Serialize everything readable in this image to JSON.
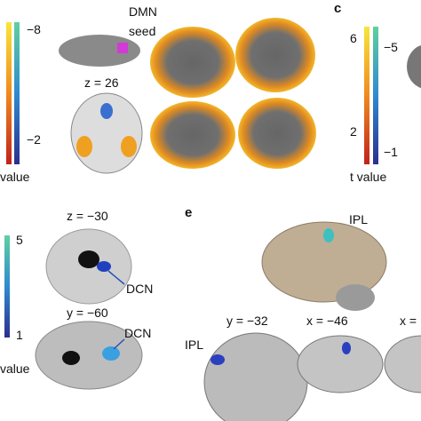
{
  "panel_b": {
    "seed_label": [
      "DMN",
      "seed"
    ],
    "slice_label": "z = 26",
    "colorbar_ticks": [
      "−8",
      "−2"
    ],
    "colorbar_label": "value"
  },
  "panel_c": {
    "letter": "c",
    "colorbar_left_ticks": [
      "6",
      "2"
    ],
    "colorbar_right_ticks": [
      "−5",
      "−1"
    ],
    "colorbar_label": "t value"
  },
  "panel_d": {
    "colorbar_ticks": [
      "5",
      "1"
    ],
    "colorbar_label": "value",
    "slices": [
      {
        "label": "z = −30",
        "annotation": "DCN"
      },
      {
        "label": "y = −60",
        "annotation": "DCN"
      }
    ]
  },
  "panel_e": {
    "letter": "e",
    "surface_annotation": "IPL",
    "slices": [
      "y = −32",
      "x = −46",
      "x ="
    ],
    "slice_annotation": "IPL"
  }
}
